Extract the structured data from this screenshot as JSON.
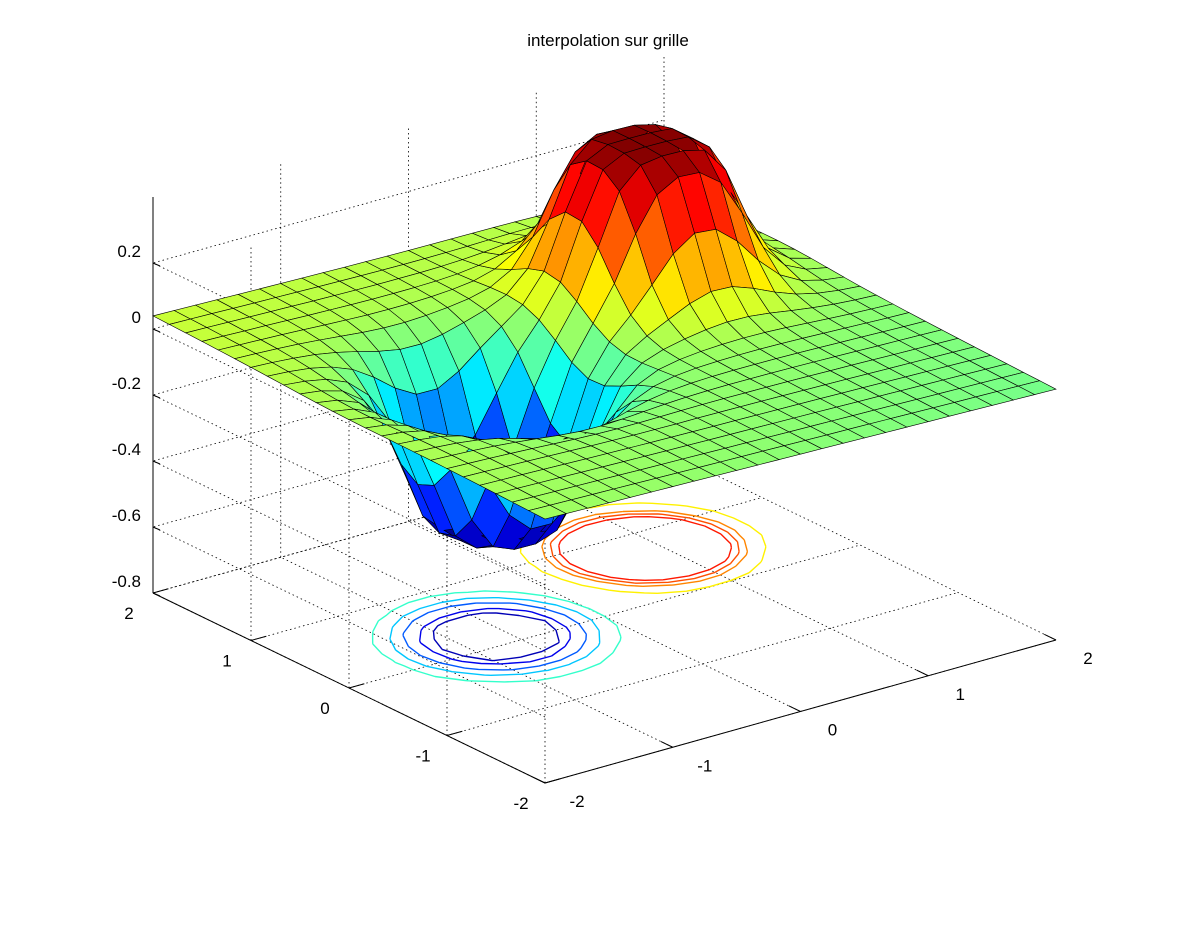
{
  "chart_data": {
    "type": "surface",
    "title": "interpolation sur grille",
    "xlabel": "",
    "ylabel": "",
    "zlabel": "",
    "xlim": [
      -2,
      2
    ],
    "ylim": [
      -2,
      2
    ],
    "zlim": [
      -0.8,
      0.4
    ],
    "x_ticks": [
      "-2",
      "-1",
      "0",
      "1",
      "2"
    ],
    "y_ticks": [
      "-2",
      "-1",
      "0",
      "1",
      "2"
    ],
    "z_ticks": [
      "-0.8",
      "-0.6",
      "-0.4",
      "-0.2",
      "0",
      "0.2"
    ],
    "grid": true,
    "colormap": "jet",
    "contour_levels": [
      -0.5,
      -0.45,
      -0.4,
      -0.3,
      -0.2,
      -0.1,
      0.1,
      0.2,
      0.25,
      0.3
    ],
    "surface": {
      "grid_size": 24,
      "components": [
        {
          "kind": "peak",
          "center": [
            0.9,
            0.75
          ],
          "amplitude": 0.44
        },
        {
          "kind": "trough",
          "center": [
            -0.75,
            0.15
          ],
          "amplitude": -0.5
        }
      ]
    }
  }
}
